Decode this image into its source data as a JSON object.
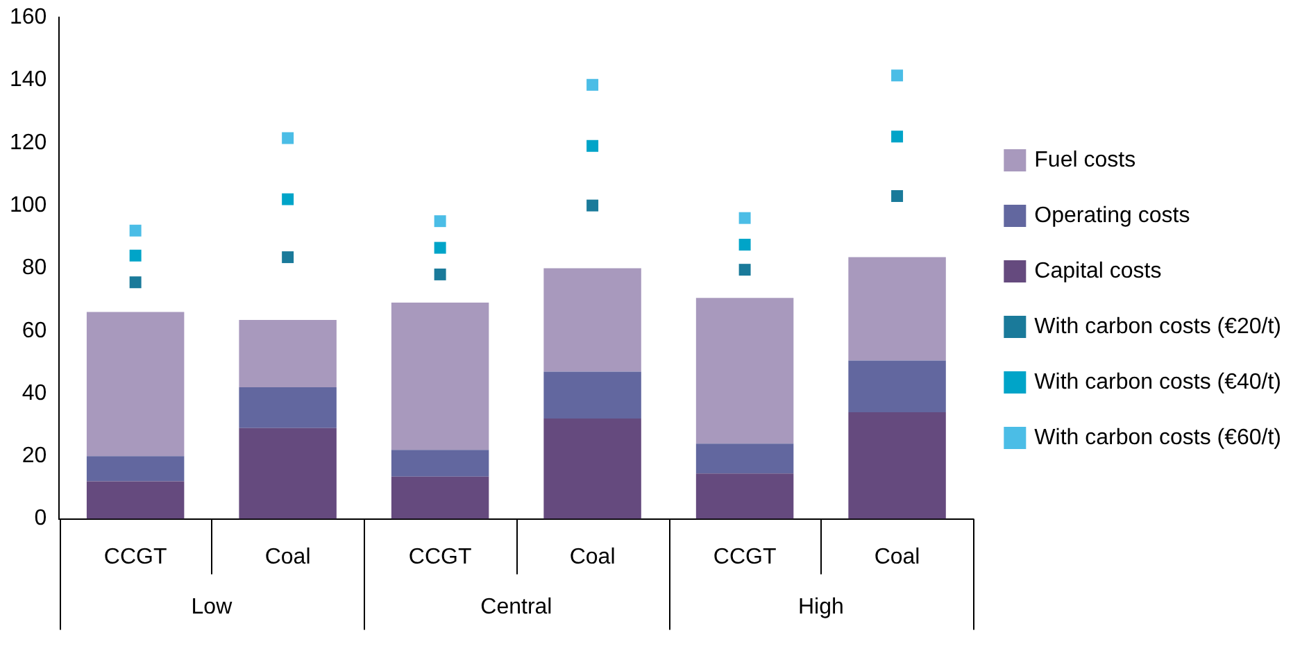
{
  "chart_data": {
    "type": "bar",
    "stacked": true,
    "categories": [
      "CCGT",
      "Coal",
      "CCGT",
      "Coal",
      "CCGT",
      "Coal"
    ],
    "annotations": [
      "Low",
      "Central",
      "High"
    ],
    "series": [
      {
        "name": "Capital costs",
        "color": "#654a7e",
        "values": [
          12,
          29,
          13.5,
          32,
          14.5,
          34
        ]
      },
      {
        "name": "Operating costs",
        "color": "#62679f",
        "values": [
          8,
          13,
          8.5,
          15,
          9.5,
          16.5
        ]
      },
      {
        "name": "Fuel costs",
        "color": "#a899bd",
        "values": [
          46,
          21.5,
          47,
          33,
          46.5,
          33
        ]
      },
      {
        "name": "With carbon costs (€20/t)",
        "type": "scatter",
        "color": "#1a7a9a",
        "values": [
          75.5,
          83.5,
          78,
          100,
          79.5,
          103
        ]
      },
      {
        "name": "With carbon costs (€40/t)",
        "type": "scatter",
        "color": "#00a4c8",
        "values": [
          84,
          102,
          86.5,
          119,
          87.5,
          122
        ]
      },
      {
        "name": "With carbon costs (€60/t)",
        "type": "scatter",
        "color": "#4bbde6",
        "values": [
          92,
          121.5,
          95,
          138.5,
          96,
          141.5
        ]
      }
    ],
    "marker": "square",
    "ylim": [
      0,
      160
    ],
    "yticks": [
      0,
      20,
      40,
      60,
      80,
      100,
      120,
      140,
      160
    ],
    "grid": false,
    "legend": "right"
  }
}
